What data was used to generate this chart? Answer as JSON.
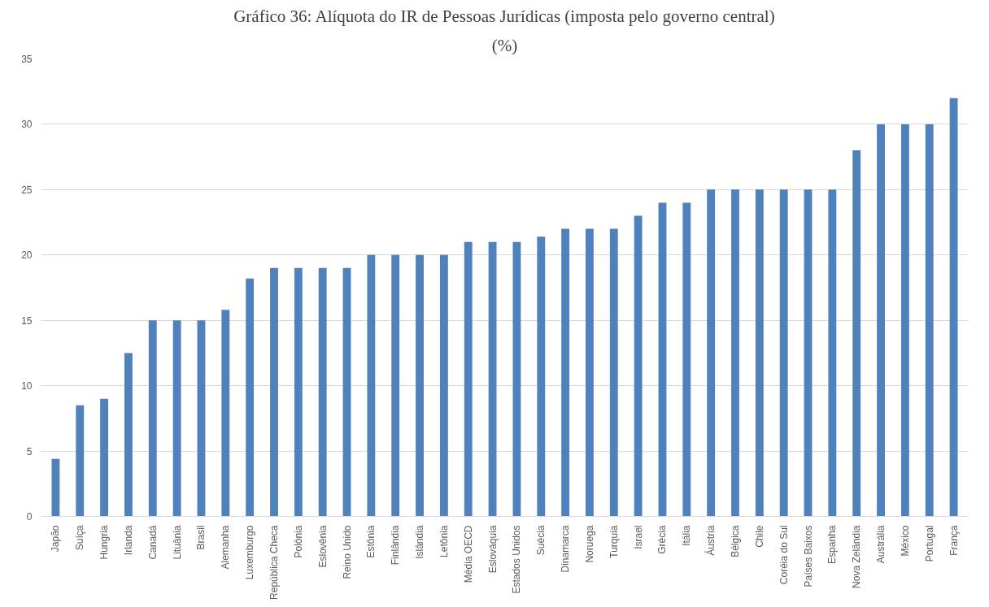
{
  "chart_data": {
    "type": "bar",
    "title": "Gráfico 36: Alíquota do IR de Pessoas Jurídicas (imposta pelo governo central)",
    "subtitle": "(%)",
    "categories": [
      "Japão",
      "Suíça",
      "Hungria",
      "Irlanda",
      "Canadá",
      "Lituânia",
      "Brasil",
      "Alemanha",
      "Luxemburgo",
      "República Checa",
      "Polônia",
      "Eslovênia",
      "Reino Unido",
      "Estônia",
      "Finlândia",
      "Islândia",
      "Letônia",
      "Média OECD",
      "Eslováquia",
      "Estados Unidos",
      "Suécia",
      "Dinamarca",
      "Noruega",
      "Turquia",
      "Israel",
      "Grécia",
      "Itália",
      "Áustria",
      "Bélgica",
      "Chile",
      "Coréia do Sul",
      "Países Baixos",
      "Espanha",
      "Nova Zelândia",
      "Austrália",
      "México",
      "Portugal",
      "França"
    ],
    "values": [
      4.4,
      8.5,
      9,
      12.5,
      15,
      15,
      15,
      15.8,
      18.2,
      19,
      19,
      19,
      19,
      20,
      20,
      20,
      20,
      21,
      21,
      21,
      21.4,
      22,
      22,
      22,
      23,
      24,
      24,
      25,
      25,
      25,
      25,
      25,
      25,
      28,
      30,
      30,
      30,
      32
    ],
    "color": "#4f81bd",
    "ylim": [
      0,
      35
    ],
    "yticks": [
      0,
      5,
      10,
      15,
      20,
      25,
      30,
      35
    ],
    "grid": "y"
  }
}
